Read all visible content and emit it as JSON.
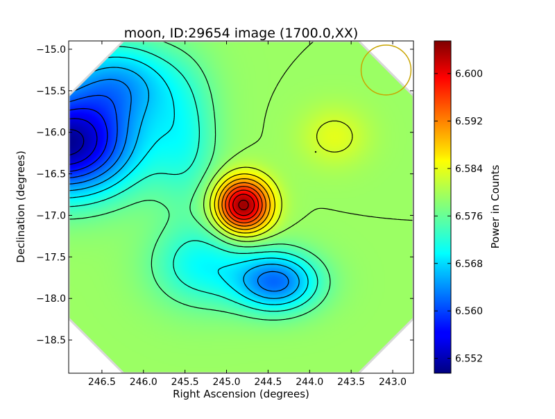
{
  "chart_data": {
    "type": "heatmap",
    "title": "moon, ID:29654 image (1700.0,XX)",
    "xlabel": "Right Ascension (degrees)",
    "ylabel": "Declination (degrees)",
    "xlim": [
      246.9,
      242.75
    ],
    "ylim": [
      -18.9,
      -14.9
    ],
    "x_ticks": [
      246.5,
      246.0,
      245.5,
      245.0,
      244.5,
      244.0,
      243.5,
      243.0
    ],
    "x_tick_labels": [
      "246.5",
      "246.0",
      "245.5",
      "245.0",
      "244.5",
      "244.0",
      "243.5",
      "243.0"
    ],
    "y_ticks": [
      -15.0,
      -15.5,
      -16.0,
      -16.5,
      -17.0,
      -17.5,
      -18.0,
      -18.5
    ],
    "y_tick_labels": [
      "−15.0",
      "−15.5",
      "−16.0",
      "−16.5",
      "−17.0",
      "−17.5",
      "−18.0",
      "−18.5"
    ],
    "colormap": "jet",
    "colorbar": {
      "label": "Power in Counts",
      "range": [
        6.5495,
        6.6055
      ],
      "ticks": [
        6.552,
        6.56,
        6.568,
        6.576,
        6.584,
        6.592,
        6.6
      ],
      "tick_labels": [
        "6.552",
        "6.560",
        "6.568",
        "6.576",
        "6.584",
        "6.592",
        "6.600"
      ]
    },
    "background_value": 6.579,
    "features": [
      {
        "kind": "minimum",
        "ra": 246.95,
        "dec": -16.15,
        "value": 6.551
      },
      {
        "kind": "maximum",
        "ra": 244.8,
        "dec": -16.88,
        "value": 6.6045
      },
      {
        "kind": "minimum",
        "ra": 244.4,
        "dec": -17.8,
        "value": 6.563
      },
      {
        "kind": "shoulder",
        "ra": 243.7,
        "dec": -16.05,
        "value": 6.582
      }
    ],
    "contour_interval": 0.003,
    "beam": {
      "ra": 243.08,
      "dec": -15.25,
      "radius_deg": 0.3,
      "color": "#c8a400"
    }
  }
}
